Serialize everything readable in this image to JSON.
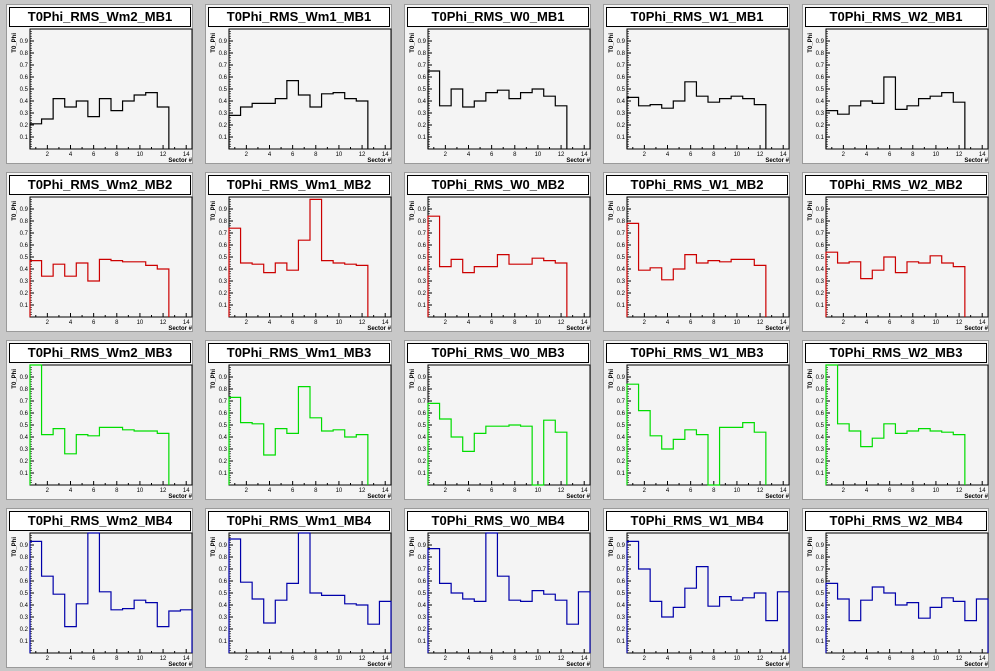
{
  "colors": {
    "MB1": "#000000",
    "MB2": "#cc0000",
    "MB3": "#00dd00",
    "MB4": "#0000aa",
    "pad_background": "#f4f4f4",
    "canvas_background": "#c8c8c8"
  },
  "chart_data": [
    {
      "type": "line",
      "title": "T0Phi_RMS_Wm2_MB1",
      "xlabel": "Sector #",
      "ylabel": "T0_Phi",
      "ylim": [
        0,
        1
      ],
      "xlim": [
        0.5,
        14.5
      ],
      "x": [
        1,
        2,
        3,
        4,
        5,
        6,
        7,
        8,
        9,
        10,
        11,
        12
      ],
      "series": [
        {
          "values": [
            0.21,
            0.25,
            0.42,
            0.35,
            0.4,
            0.27,
            0.42,
            0.32,
            0.4,
            0.45,
            0.47,
            0.35
          ]
        }
      ]
    },
    {
      "type": "line",
      "title": "T0Phi_RMS_Wm1_MB1",
      "xlabel": "Sector #",
      "ylabel": "T0_Phi",
      "ylim": [
        0,
        1
      ],
      "xlim": [
        0.5,
        14.5
      ],
      "x": [
        1,
        2,
        3,
        4,
        5,
        6,
        7,
        8,
        9,
        10,
        11,
        12
      ],
      "series": [
        {
          "values": [
            0.28,
            0.35,
            0.38,
            0.38,
            0.42,
            0.57,
            0.45,
            0.35,
            0.46,
            0.47,
            0.42,
            0.4
          ]
        }
      ]
    },
    {
      "type": "line",
      "title": "T0Phi_RMS_W0_MB1",
      "xlabel": "Sector #",
      "ylabel": "T0_Phi",
      "ylim": [
        0,
        1
      ],
      "xlim": [
        0.5,
        14.5
      ],
      "x": [
        1,
        2,
        3,
        4,
        5,
        6,
        7,
        8,
        9,
        10,
        11,
        12
      ],
      "series": [
        {
          "values": [
            0.65,
            0.36,
            0.5,
            0.35,
            0.4,
            0.47,
            0.49,
            0.42,
            0.47,
            0.5,
            0.44,
            0.36
          ]
        }
      ]
    },
    {
      "type": "line",
      "title": "T0Phi_RMS_W1_MB1",
      "xlabel": "Sector #",
      "ylabel": "T0_Phi",
      "ylim": [
        0,
        1
      ],
      "xlim": [
        0.5,
        14.5
      ],
      "x": [
        1,
        2,
        3,
        4,
        5,
        6,
        7,
        8,
        9,
        10,
        11,
        12
      ],
      "series": [
        {
          "values": [
            0.43,
            0.36,
            0.37,
            0.34,
            0.4,
            0.56,
            0.44,
            0.39,
            0.42,
            0.44,
            0.42,
            0.37
          ]
        }
      ]
    },
    {
      "type": "line",
      "title": "T0Phi_RMS_W2_MB1",
      "xlabel": "Sector #",
      "ylabel": "T0_Phi",
      "ylim": [
        0,
        1
      ],
      "xlim": [
        0.5,
        14.5
      ],
      "x": [
        1,
        2,
        3,
        4,
        5,
        6,
        7,
        8,
        9,
        10,
        11,
        12
      ],
      "series": [
        {
          "values": [
            0.32,
            0.29,
            0.36,
            0.4,
            0.38,
            0.6,
            0.33,
            0.36,
            0.42,
            0.44,
            0.47,
            0.39
          ]
        }
      ]
    },
    {
      "type": "line",
      "title": "T0Phi_RMS_Wm2_MB2",
      "xlabel": "Sector #",
      "ylabel": "T0_Phi",
      "ylim": [
        0,
        1
      ],
      "xlim": [
        0.5,
        14.5
      ],
      "x": [
        1,
        2,
        3,
        4,
        5,
        6,
        7,
        8,
        9,
        10,
        11,
        12
      ],
      "series": [
        {
          "values": [
            0.47,
            0.34,
            0.44,
            0.34,
            0.45,
            0.3,
            0.48,
            0.47,
            0.46,
            0.46,
            0.43,
            0.4
          ]
        }
      ]
    },
    {
      "type": "line",
      "title": "T0Phi_RMS_Wm1_MB2",
      "xlabel": "Sector #",
      "ylabel": "T0_Phi",
      "ylim": [
        0,
        1
      ],
      "xlim": [
        0.5,
        14.5
      ],
      "x": [
        1,
        2,
        3,
        4,
        5,
        6,
        7,
        8,
        9,
        10,
        11,
        12
      ],
      "series": [
        {
          "values": [
            0.74,
            0.45,
            0.44,
            0.37,
            0.45,
            0.39,
            0.64,
            0.98,
            0.47,
            0.45,
            0.44,
            0.43
          ]
        }
      ]
    },
    {
      "type": "line",
      "title": "T0Phi_RMS_W0_MB2",
      "xlabel": "Sector #",
      "ylabel": "T0_Phi",
      "ylim": [
        0,
        1
      ],
      "xlim": [
        0.5,
        14.5
      ],
      "x": [
        1,
        2,
        3,
        4,
        5,
        6,
        7,
        8,
        9,
        10,
        11,
        12
      ],
      "series": [
        {
          "values": [
            0.84,
            0.42,
            0.48,
            0.37,
            0.42,
            0.42,
            0.52,
            0.44,
            0.44,
            0.49,
            0.47,
            0.45
          ]
        }
      ]
    },
    {
      "type": "line",
      "title": "T0Phi_RMS_W1_MB2",
      "xlabel": "Sector #",
      "ylabel": "T0_Phi",
      "ylim": [
        0,
        1
      ],
      "xlim": [
        0.5,
        14.5
      ],
      "x": [
        1,
        2,
        3,
        4,
        5,
        6,
        7,
        8,
        9,
        10,
        11,
        12
      ],
      "series": [
        {
          "values": [
            0.78,
            0.39,
            0.41,
            0.31,
            0.4,
            0.52,
            0.45,
            0.47,
            0.46,
            0.48,
            0.48,
            0.43
          ]
        }
      ]
    },
    {
      "type": "line",
      "title": "T0Phi_RMS_W2_MB2",
      "xlabel": "Sector #",
      "ylabel": "T0_Phi",
      "ylim": [
        0,
        1
      ],
      "xlim": [
        0.5,
        14.5
      ],
      "x": [
        1,
        2,
        3,
        4,
        5,
        6,
        7,
        8,
        9,
        10,
        11,
        12
      ],
      "series": [
        {
          "values": [
            0.54,
            0.45,
            0.46,
            0.32,
            0.39,
            0.5,
            0.37,
            0.46,
            0.45,
            0.51,
            0.45,
            0.42
          ]
        }
      ]
    },
    {
      "type": "line",
      "title": "T0Phi_RMS_Wm2_MB3",
      "xlabel": "Sector #",
      "ylabel": "T0_Phi",
      "ylim": [
        0,
        1
      ],
      "xlim": [
        0.5,
        14.5
      ],
      "x": [
        1,
        2,
        3,
        4,
        5,
        6,
        7,
        8,
        9,
        10,
        11,
        12
      ],
      "series": [
        {
          "values": [
            1.0,
            0.42,
            0.47,
            0.26,
            0.42,
            0.41,
            0.48,
            0.48,
            0.46,
            0.45,
            0.45,
            0.43
          ]
        }
      ]
    },
    {
      "type": "line",
      "title": "T0Phi_RMS_Wm1_MB3",
      "xlabel": "Sector #",
      "ylabel": "T0_Phi",
      "ylim": [
        0,
        1
      ],
      "xlim": [
        0.5,
        14.5
      ],
      "x": [
        1,
        2,
        3,
        4,
        5,
        6,
        7,
        8,
        9,
        10,
        11,
        12
      ],
      "series": [
        {
          "values": [
            0.73,
            0.52,
            0.51,
            0.25,
            0.47,
            0.43,
            0.82,
            0.56,
            0.45,
            0.46,
            0.4,
            0.42
          ]
        }
      ]
    },
    {
      "type": "line",
      "title": "T0Phi_RMS_W0_MB3",
      "xlabel": "Sector #",
      "ylabel": "T0_Phi",
      "ylim": [
        0,
        1
      ],
      "xlim": [
        0.5,
        14.5
      ],
      "x": [
        1,
        2,
        3,
        4,
        5,
        6,
        7,
        8,
        9,
        10,
        11,
        12
      ],
      "series": [
        {
          "values": [
            0.68,
            0.55,
            0.4,
            0.28,
            0.43,
            0.49,
            0.49,
            0.5,
            0.49,
            0.0,
            0.54,
            0.44
          ]
        }
      ]
    },
    {
      "type": "line",
      "title": "T0Phi_RMS_W1_MB3",
      "xlabel": "Sector #",
      "ylabel": "T0_Phi",
      "ylim": [
        0,
        1
      ],
      "xlim": [
        0.5,
        14.5
      ],
      "x": [
        1,
        2,
        3,
        4,
        5,
        6,
        7,
        8,
        9,
        10,
        11,
        12
      ],
      "series": [
        {
          "values": [
            0.84,
            0.62,
            0.41,
            0.3,
            0.38,
            0.46,
            0.42,
            0.0,
            0.48,
            0.48,
            0.52,
            0.44
          ]
        }
      ]
    },
    {
      "type": "line",
      "title": "T0Phi_RMS_W2_MB3",
      "xlabel": "Sector #",
      "ylabel": "T0_Phi",
      "ylim": [
        0,
        1
      ],
      "xlim": [
        0.5,
        14.5
      ],
      "x": [
        1,
        2,
        3,
        4,
        5,
        6,
        7,
        8,
        9,
        10,
        11,
        12
      ],
      "series": [
        {
          "values": [
            1.0,
            0.51,
            0.45,
            0.32,
            0.39,
            0.51,
            0.43,
            0.45,
            0.47,
            0.45,
            0.44,
            0.42
          ]
        }
      ]
    },
    {
      "type": "line",
      "title": "T0Phi_RMS_Wm2_MB4",
      "xlabel": "Sector #",
      "ylabel": "T0_Phi",
      "ylim": [
        0,
        1
      ],
      "xlim": [
        0.5,
        14.5
      ],
      "x": [
        1,
        2,
        3,
        4,
        5,
        6,
        7,
        8,
        9,
        10,
        11,
        12,
        13,
        14
      ],
      "series": [
        {
          "values": [
            0.93,
            0.64,
            0.49,
            0.22,
            0.41,
            1.0,
            0.51,
            0.36,
            0.37,
            0.44,
            0.42,
            0.22,
            0.35,
            0.36
          ]
        }
      ]
    },
    {
      "type": "line",
      "title": "T0Phi_RMS_Wm1_MB4",
      "xlabel": "Sector #",
      "ylabel": "T0_Phi",
      "ylim": [
        0,
        1
      ],
      "xlim": [
        0.5,
        14.5
      ],
      "x": [
        1,
        2,
        3,
        4,
        5,
        6,
        7,
        8,
        9,
        10,
        11,
        12,
        13,
        14
      ],
      "series": [
        {
          "values": [
            0.95,
            0.59,
            0.45,
            0.25,
            0.44,
            0.58,
            1.0,
            0.5,
            0.48,
            0.48,
            0.41,
            0.4,
            0.24,
            0.43
          ]
        }
      ]
    },
    {
      "type": "line",
      "title": "T0Phi_RMS_W0_MB4",
      "xlabel": "Sector #",
      "ylabel": "T0_Phi",
      "ylim": [
        0,
        1
      ],
      "xlim": [
        0.5,
        14.5
      ],
      "x": [
        1,
        2,
        3,
        4,
        5,
        6,
        7,
        8,
        9,
        10,
        11,
        12,
        13,
        14
      ],
      "series": [
        {
          "values": [
            0.87,
            0.58,
            0.5,
            0.45,
            0.43,
            1.0,
            0.64,
            0.44,
            0.43,
            0.52,
            0.49,
            0.44,
            0.24,
            0.51
          ]
        }
      ]
    },
    {
      "type": "line",
      "title": "T0Phi_RMS_W1_MB4",
      "xlabel": "Sector #",
      "ylabel": "T0_Phi",
      "ylim": [
        0,
        1
      ],
      "xlim": [
        0.5,
        14.5
      ],
      "x": [
        1,
        2,
        3,
        4,
        5,
        6,
        7,
        8,
        9,
        10,
        11,
        12,
        13,
        14
      ],
      "series": [
        {
          "values": [
            0.93,
            0.7,
            0.43,
            0.3,
            0.38,
            0.54,
            0.72,
            0.39,
            0.47,
            0.44,
            0.46,
            0.5,
            0.27,
            0.51
          ]
        }
      ]
    },
    {
      "type": "line",
      "title": "T0Phi_RMS_W2_MB4",
      "xlabel": "Sector #",
      "ylabel": "T0_Phi",
      "ylim": [
        0,
        1
      ],
      "xlim": [
        0.5,
        14.5
      ],
      "x": [
        1,
        2,
        3,
        4,
        5,
        6,
        7,
        8,
        9,
        10,
        11,
        12,
        13,
        14
      ],
      "series": [
        {
          "values": [
            0.58,
            0.45,
            0.27,
            0.44,
            0.55,
            0.5,
            0.4,
            0.42,
            0.29,
            0.38,
            0.46,
            0.43,
            0.27,
            0.45
          ]
        }
      ]
    }
  ]
}
